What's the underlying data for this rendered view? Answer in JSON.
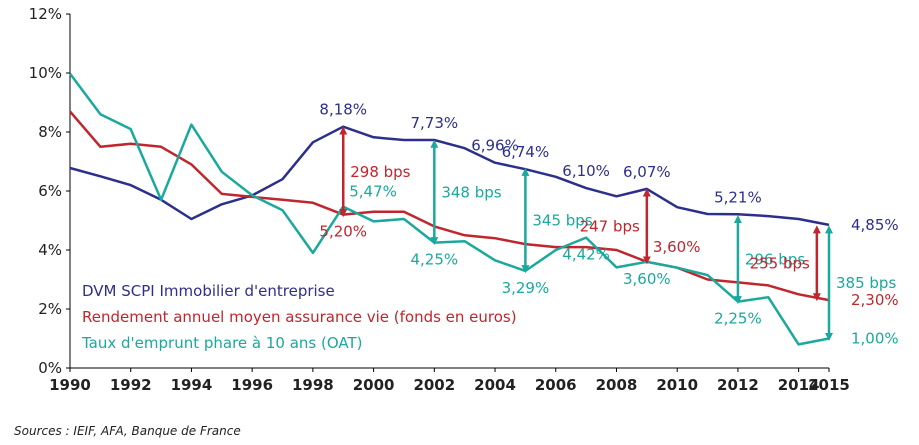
{
  "chart_data": {
    "type": "line",
    "xlim": [
      1990,
      2015
    ],
    "ylim": [
      0,
      12
    ],
    "x_ticks": [
      "1990",
      "1992",
      "1994",
      "1996",
      "1998",
      "2000",
      "2002",
      "2004",
      "2006",
      "2008",
      "2010",
      "2012",
      "2014",
      "2015"
    ],
    "y_ticks": [
      "0%",
      "2%",
      "4%",
      "6%",
      "8%",
      "10%",
      "12%"
    ],
    "grid": false,
    "legend_position": "bottom-left",
    "colors": {
      "dvm": "#2d2f8c",
      "assurance": "#c0262d",
      "oat": "#1aa99c"
    },
    "series": [
      {
        "name": "DVM SCPI Immobilier d'entreprise",
        "key": "dvm",
        "x": [
          1990,
          1991,
          1992,
          1993,
          1994,
          1995,
          1996,
          1997,
          1998,
          1999,
          2000,
          2001,
          2002,
          2003,
          2004,
          2005,
          2006,
          2007,
          2008,
          2009,
          2010,
          2011,
          2012,
          2013,
          2014,
          2015
        ],
        "y": [
          6.78,
          6.5,
          6.2,
          5.7,
          5.05,
          5.55,
          5.85,
          6.4,
          7.65,
          8.18,
          7.82,
          7.73,
          7.73,
          7.45,
          6.96,
          6.74,
          6.48,
          6.1,
          5.82,
          6.07,
          5.45,
          5.22,
          5.21,
          5.15,
          5.05,
          4.85
        ]
      },
      {
        "name": "Rendement annuel moyen assurance vie (fonds en euros)",
        "key": "assurance",
        "x": [
          1990,
          1991,
          1992,
          1993,
          1994,
          1995,
          1996,
          1997,
          1998,
          1999,
          2000,
          2001,
          2002,
          2003,
          2004,
          2005,
          2006,
          2007,
          2008,
          2009,
          2010,
          2011,
          2012,
          2013,
          2014,
          2015
        ],
        "y": [
          8.7,
          7.5,
          7.6,
          7.5,
          6.9,
          5.9,
          5.8,
          5.7,
          5.6,
          5.2,
          5.3,
          5.3,
          4.8,
          4.5,
          4.4,
          4.2,
          4.1,
          4.1,
          4.0,
          3.6,
          3.4,
          3.0,
          2.9,
          2.8,
          2.5,
          2.3
        ]
      },
      {
        "name": "Taux d'emprunt phare à 10 ans (OAT)",
        "key": "oat",
        "x": [
          1990,
          1991,
          1992,
          1993,
          1994,
          1995,
          1996,
          1997,
          1998,
          1999,
          2000,
          2001,
          2002,
          2003,
          2004,
          2005,
          2006,
          2007,
          2008,
          2009,
          2010,
          2011,
          2012,
          2013,
          2014,
          2015
        ],
        "y": [
          9.98,
          8.6,
          8.1,
          5.7,
          8.25,
          6.65,
          5.85,
          5.35,
          3.9,
          5.47,
          4.97,
          5.05,
          4.25,
          4.3,
          3.65,
          3.29,
          4.0,
          4.42,
          3.41,
          3.6,
          3.4,
          3.15,
          2.25,
          2.4,
          0.8,
          1.0
        ]
      }
    ],
    "point_labels": [
      {
        "series": "dvm",
        "x": 1999,
        "y": 8.18,
        "text": "8,18%",
        "anchor": "above"
      },
      {
        "series": "dvm",
        "x": 2002,
        "y": 7.73,
        "text": "7,73%",
        "anchor": "above"
      },
      {
        "series": "dvm",
        "x": 2004,
        "y": 6.96,
        "text": "6,96%",
        "anchor": "above"
      },
      {
        "series": "dvm",
        "x": 2005,
        "y": 6.74,
        "text": "6,74%",
        "anchor": "above"
      },
      {
        "series": "dvm",
        "x": 2007,
        "y": 6.1,
        "text": "6,10%",
        "anchor": "above"
      },
      {
        "series": "dvm",
        "x": 2009,
        "y": 6.07,
        "text": "6,07%",
        "anchor": "above"
      },
      {
        "series": "dvm",
        "x": 2012,
        "y": 5.21,
        "text": "5,21%",
        "anchor": "above"
      },
      {
        "series": "dvm",
        "x": 2015,
        "y": 4.85,
        "text": "4,85%",
        "anchor": "right"
      },
      {
        "series": "assurance",
        "x": 1999,
        "y": 5.2,
        "text": "5,20%",
        "anchor": "below"
      },
      {
        "series": "assurance",
        "x": 2009,
        "y": 3.6,
        "text": "3,60%",
        "anchor": "above-right"
      },
      {
        "series": "assurance",
        "x": 2015,
        "y": 2.3,
        "text": "2,30%",
        "anchor": "right"
      },
      {
        "series": "oat",
        "x": 1999,
        "y": 5.47,
        "text": "5,47%",
        "anchor": "above-right"
      },
      {
        "series": "oat",
        "x": 2002,
        "y": 4.25,
        "text": "4,25%",
        "anchor": "below"
      },
      {
        "series": "oat",
        "x": 2005,
        "y": 3.29,
        "text": "3,29%",
        "anchor": "below"
      },
      {
        "series": "oat",
        "x": 2007,
        "y": 4.42,
        "text": "4,42%",
        "anchor": "below"
      },
      {
        "series": "oat",
        "x": 2009,
        "y": 3.6,
        "text": "3,60%",
        "anchor": "below"
      },
      {
        "series": "oat",
        "x": 2012,
        "y": 2.25,
        "text": "2,25%",
        "anchor": "below"
      },
      {
        "series": "oat",
        "x": 2015,
        "y": 1.0,
        "text": "1,00%",
        "anchor": "right"
      }
    ],
    "spread_annotations": [
      {
        "x": 1999,
        "y_top": 8.05,
        "y_bottom": 5.25,
        "text": "298 bps",
        "color_key": "assurance",
        "label_side": "right"
      },
      {
        "x": 2002,
        "y_top": 7.6,
        "y_bottom": 4.3,
        "text": "348 bps",
        "color_key": "oat",
        "label_side": "right"
      },
      {
        "x": 2005,
        "y_top": 6.65,
        "y_bottom": 3.35,
        "text": "345 bps",
        "color_key": "oat",
        "label_side": "right"
      },
      {
        "x": 2009,
        "y_top": 5.95,
        "y_bottom": 3.65,
        "text": "247 bps",
        "color_key": "assurance",
        "label_side": "left"
      },
      {
        "x": 2012,
        "y_top": 5.05,
        "y_bottom": 2.3,
        "text": "296 bps",
        "color_key": "oat",
        "label_side": "right"
      },
      {
        "x": 2014.6,
        "y_top": 4.7,
        "y_bottom": 2.4,
        "text": "255 bps",
        "color_key": "assurance",
        "label_side": "left"
      },
      {
        "x": 2015,
        "y_top": 4.7,
        "y_bottom": 1.05,
        "text": "385 bps",
        "color_key": "oat",
        "label_side": "right"
      }
    ]
  },
  "source": "Sources : IEIF, AFA, Banque de France"
}
